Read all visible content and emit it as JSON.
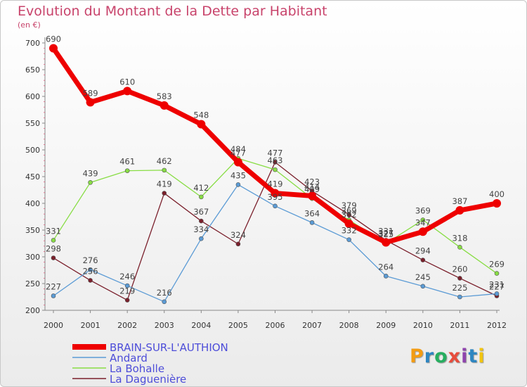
{
  "chart_data": {
    "type": "line",
    "title": "Evolution du Montant de la Dette par Habitant",
    "subtitle": "(en €)",
    "x": [
      2000,
      2001,
      2002,
      2003,
      2004,
      2005,
      2006,
      2007,
      2008,
      2009,
      2010,
      2011,
      2012
    ],
    "ylim": [
      200,
      700
    ],
    "yticks": [
      200,
      250,
      300,
      350,
      400,
      450,
      500,
      550,
      600,
      650,
      700
    ],
    "grid": false,
    "legend_position": "bottom-left",
    "series": [
      {
        "name": "BRAIN-SUR-L'AUTHION",
        "color": "#ee0000",
        "values": [
          690,
          589,
          610,
          583,
          548,
          477,
          419,
          414,
          362,
          327,
          347,
          387,
          400
        ]
      },
      {
        "name": "Andard",
        "color": "#5b9bd5",
        "values": [
          227,
          276,
          246,
          216,
          334,
          435,
          395,
          364,
          332,
          264,
          245,
          225,
          231
        ]
      },
      {
        "name": "La Bohalle",
        "color": "#88dd44",
        "values": [
          331,
          439,
          461,
          462,
          412,
          484,
          463,
          409,
          369,
          325,
          369,
          318,
          269
        ]
      },
      {
        "name": "La Daguenière",
        "color": "#7a1f2b",
        "values": [
          298,
          256,
          219,
          419,
          367,
          324,
          477,
          423,
          379,
          331,
          294,
          260,
          227
        ]
      }
    ]
  },
  "logo": {
    "text": "Proxiti",
    "colors": [
      "#f39c12",
      "#2e86c1",
      "#27ae60",
      "#e74c3c",
      "#8e44ad",
      "#2e86c1",
      "#f1c40f"
    ]
  }
}
